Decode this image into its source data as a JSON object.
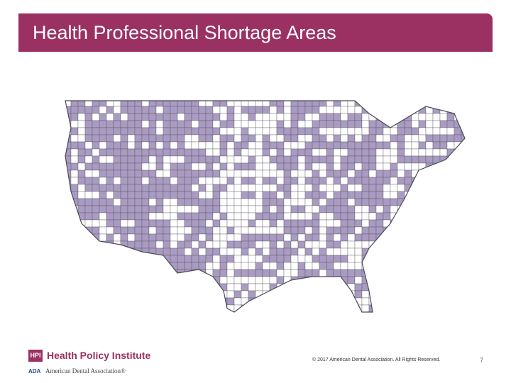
{
  "slide": {
    "title": "Health Professional Shortage Areas",
    "page_number": "7"
  },
  "map": {
    "subject": "Contiguous United States county map",
    "shortage_fill_color": "#a99bc1",
    "non_shortage_fill_color": "#ffffff",
    "border_color": "#4a4a5a"
  },
  "footer": {
    "hpi_badge": "HPI",
    "hpi_name": "Health Policy Institute",
    "ada_mark": "ADA",
    "ada_name": "American Dental Association",
    "ada_trademark": "®",
    "copyright": "© 2017 American Dental Association. All Rights Reserved."
  },
  "colors": {
    "brand": "#9b3162",
    "title_text": "#ffffff"
  }
}
